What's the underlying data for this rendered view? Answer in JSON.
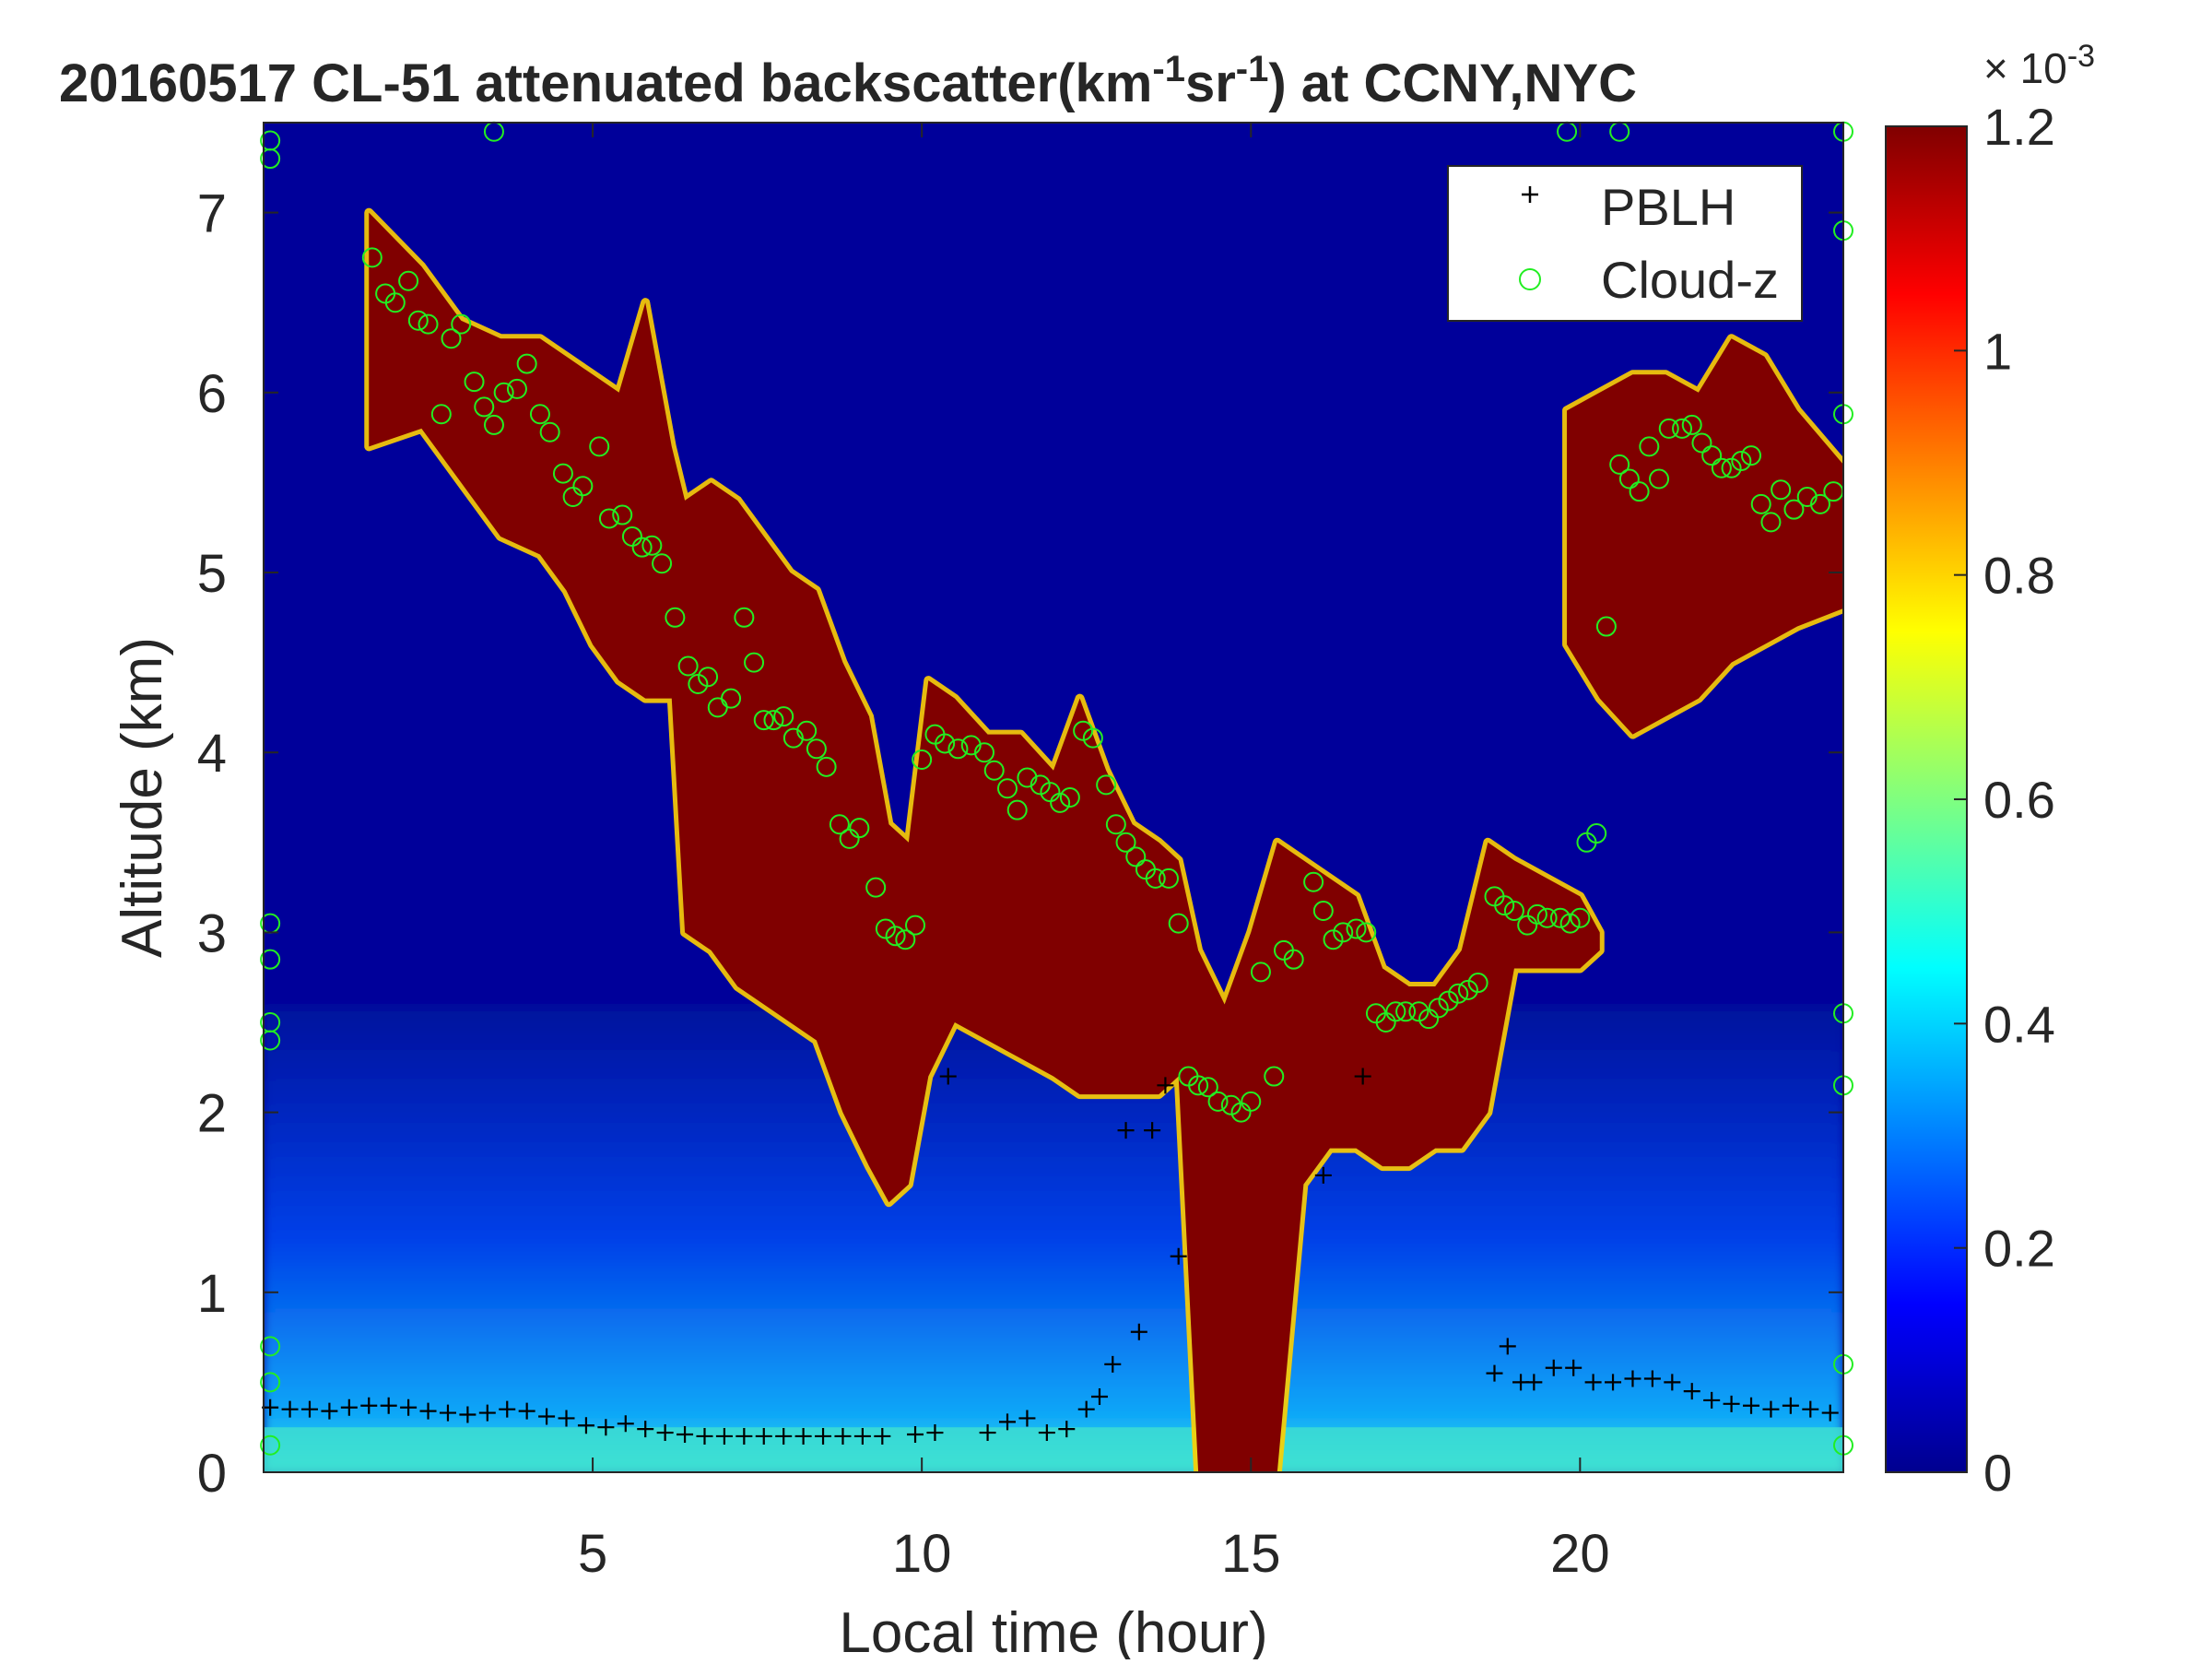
{
  "chart_data": {
    "type": "heatmap",
    "title_prefix": "20160517  CL-51 attenuated backscatter(km",
    "title_exp1": "-1",
    "title_mid": "sr",
    "title_exp2": "-1",
    "title_suffix": ") at CCNY,NYC",
    "xlabel": "Local time (hour)",
    "ylabel": "Altitude (km)",
    "xlim": [
      0,
      24
    ],
    "ylim": [
      0,
      7.5
    ],
    "xticks": [
      5,
      10,
      15,
      20
    ],
    "yticks": [
      0,
      1,
      2,
      3,
      4,
      5,
      6,
      7
    ],
    "colorbar": {
      "colormap": "jet",
      "clim": [
        0,
        0.0012
      ],
      "ticks": [
        0,
        0.2,
        0.4,
        0.6,
        0.8,
        1,
        1.2
      ],
      "multiplier_base": "× 10",
      "multiplier_exp": "-3"
    },
    "legend": {
      "position": "top-right",
      "pblh_label": "PBLH",
      "cloud_label": "Cloud-z"
    },
    "cloud_layer": [
      {
        "t": 1.6,
        "base": 5.7,
        "top": 7.0
      },
      {
        "t": 2.4,
        "base": 5.8,
        "top": 6.7
      },
      {
        "t": 3.0,
        "base": 5.5,
        "top": 6.4
      },
      {
        "t": 3.6,
        "base": 5.2,
        "top": 6.3
      },
      {
        "t": 4.2,
        "base": 5.1,
        "top": 6.3
      },
      {
        "t": 4.6,
        "base": 4.9,
        "top": 6.2
      },
      {
        "t": 5.0,
        "base": 4.6,
        "top": 6.1
      },
      {
        "t": 5.4,
        "base": 4.4,
        "top": 6.0
      },
      {
        "t": 5.8,
        "base": 4.3,
        "top": 6.5
      },
      {
        "t": 6.2,
        "base": 4.3,
        "top": 5.7
      },
      {
        "t": 6.4,
        "base": 3.0,
        "top": 5.4
      },
      {
        "t": 6.8,
        "base": 2.9,
        "top": 5.5
      },
      {
        "t": 7.2,
        "base": 2.7,
        "top": 5.4
      },
      {
        "t": 7.6,
        "base": 2.6,
        "top": 5.2
      },
      {
        "t": 8.0,
        "base": 2.5,
        "top": 5.0
      },
      {
        "t": 8.4,
        "base": 2.4,
        "top": 4.9
      },
      {
        "t": 8.8,
        "base": 2.0,
        "top": 4.5
      },
      {
        "t": 9.2,
        "base": 1.7,
        "top": 4.2
      },
      {
        "t": 9.5,
        "base": 1.5,
        "top": 3.6
      },
      {
        "t": 9.8,
        "base": 1.6,
        "top": 3.5
      },
      {
        "t": 10.1,
        "base": 2.2,
        "top": 4.4
      },
      {
        "t": 10.5,
        "base": 2.5,
        "top": 4.3
      },
      {
        "t": 11.0,
        "base": 2.4,
        "top": 4.1
      },
      {
        "t": 11.5,
        "base": 2.3,
        "top": 4.1
      },
      {
        "t": 12.0,
        "base": 2.2,
        "top": 3.9
      },
      {
        "t": 12.4,
        "base": 2.1,
        "top": 4.3
      },
      {
        "t": 12.8,
        "base": 2.1,
        "top": 3.9
      },
      {
        "t": 13.2,
        "base": 2.1,
        "top": 3.6
      },
      {
        "t": 13.6,
        "base": 2.1,
        "top": 3.5
      },
      {
        "t": 13.9,
        "base": 2.2,
        "top": 3.4
      },
      {
        "t": 14.2,
        "base": 0.0,
        "top": 2.9
      },
      {
        "t": 14.6,
        "base": 0.0,
        "top": 2.6
      },
      {
        "t": 15.0,
        "base": 0.0,
        "top": 3.0
      },
      {
        "t": 15.4,
        "base": 0.0,
        "top": 3.5
      },
      {
        "t": 15.8,
        "base": 1.6,
        "top": 3.4
      },
      {
        "t": 16.2,
        "base": 1.8,
        "top": 3.3
      },
      {
        "t": 16.6,
        "base": 1.8,
        "top": 3.2
      },
      {
        "t": 17.0,
        "base": 1.7,
        "top": 2.8
      },
      {
        "t": 17.4,
        "base": 1.7,
        "top": 2.7
      },
      {
        "t": 17.8,
        "base": 1.8,
        "top": 2.7
      },
      {
        "t": 18.2,
        "base": 1.8,
        "top": 2.9
      },
      {
        "t": 18.6,
        "base": 2.0,
        "top": 3.5
      },
      {
        "t": 19.0,
        "base": 2.8,
        "top": 3.4
      },
      {
        "t": 19.5,
        "base": 2.8,
        "top": 3.3
      },
      {
        "t": 20.0,
        "base": 2.8,
        "top": 3.2
      },
      {
        "t": 20.3,
        "base": 2.9,
        "top": 3.0
      }
    ],
    "upper_cloud": [
      {
        "t": 19.8,
        "base": 4.6,
        "top": 5.9
      },
      {
        "t": 20.3,
        "base": 4.3,
        "top": 6.0
      },
      {
        "t": 20.8,
        "base": 4.1,
        "top": 6.1
      },
      {
        "t": 21.3,
        "base": 4.2,
        "top": 6.1
      },
      {
        "t": 21.8,
        "base": 4.3,
        "top": 6.0
      },
      {
        "t": 22.3,
        "base": 4.5,
        "top": 6.3
      },
      {
        "t": 22.8,
        "base": 4.6,
        "top": 6.2
      },
      {
        "t": 23.3,
        "base": 4.7,
        "top": 5.9
      },
      {
        "t": 24.0,
        "base": 4.8,
        "top": 5.6
      }
    ],
    "pblh": [
      {
        "t": 0.1,
        "z": 0.36
      },
      {
        "t": 0.4,
        "z": 0.35
      },
      {
        "t": 0.7,
        "z": 0.35
      },
      {
        "t": 1.0,
        "z": 0.34
      },
      {
        "t": 1.3,
        "z": 0.36
      },
      {
        "t": 1.6,
        "z": 0.37
      },
      {
        "t": 1.9,
        "z": 0.37
      },
      {
        "t": 2.2,
        "z": 0.36
      },
      {
        "t": 2.5,
        "z": 0.34
      },
      {
        "t": 2.8,
        "z": 0.33
      },
      {
        "t": 3.1,
        "z": 0.32
      },
      {
        "t": 3.4,
        "z": 0.33
      },
      {
        "t": 3.7,
        "z": 0.35
      },
      {
        "t": 4.0,
        "z": 0.34
      },
      {
        "t": 4.3,
        "z": 0.31
      },
      {
        "t": 4.6,
        "z": 0.3
      },
      {
        "t": 4.9,
        "z": 0.26
      },
      {
        "t": 5.2,
        "z": 0.25
      },
      {
        "t": 5.5,
        "z": 0.27
      },
      {
        "t": 5.8,
        "z": 0.24
      },
      {
        "t": 6.1,
        "z": 0.22
      },
      {
        "t": 6.4,
        "z": 0.21
      },
      {
        "t": 6.7,
        "z": 0.2
      },
      {
        "t": 7.0,
        "z": 0.2
      },
      {
        "t": 7.3,
        "z": 0.2
      },
      {
        "t": 7.6,
        "z": 0.2
      },
      {
        "t": 7.9,
        "z": 0.2
      },
      {
        "t": 8.2,
        "z": 0.2
      },
      {
        "t": 8.5,
        "z": 0.2
      },
      {
        "t": 8.8,
        "z": 0.2
      },
      {
        "t": 9.1,
        "z": 0.2
      },
      {
        "t": 9.4,
        "z": 0.2
      },
      {
        "t": 9.9,
        "z": 0.21
      },
      {
        "t": 10.2,
        "z": 0.22
      },
      {
        "t": 10.4,
        "z": 2.2
      },
      {
        "t": 11.0,
        "z": 0.22
      },
      {
        "t": 11.3,
        "z": 0.28
      },
      {
        "t": 11.6,
        "z": 0.3
      },
      {
        "t": 11.9,
        "z": 0.22
      },
      {
        "t": 12.2,
        "z": 0.24
      },
      {
        "t": 12.5,
        "z": 0.35
      },
      {
        "t": 12.7,
        "z": 0.42
      },
      {
        "t": 12.9,
        "z": 0.6
      },
      {
        "t": 13.1,
        "z": 1.9
      },
      {
        "t": 13.3,
        "z": 0.78
      },
      {
        "t": 13.5,
        "z": 1.9
      },
      {
        "t": 13.7,
        "z": 2.15
      },
      {
        "t": 13.9,
        "z": 1.2
      },
      {
        "t": 16.1,
        "z": 1.65
      },
      {
        "t": 16.7,
        "z": 2.2
      },
      {
        "t": 18.7,
        "z": 0.55
      },
      {
        "t": 18.9,
        "z": 0.7
      },
      {
        "t": 19.1,
        "z": 0.5
      },
      {
        "t": 19.3,
        "z": 0.5
      },
      {
        "t": 19.6,
        "z": 0.58
      },
      {
        "t": 19.9,
        "z": 0.58
      },
      {
        "t": 20.2,
        "z": 0.5
      },
      {
        "t": 20.5,
        "z": 0.5
      },
      {
        "t": 20.8,
        "z": 0.52
      },
      {
        "t": 21.1,
        "z": 0.52
      },
      {
        "t": 21.4,
        "z": 0.5
      },
      {
        "t": 21.7,
        "z": 0.45
      },
      {
        "t": 22.0,
        "z": 0.4
      },
      {
        "t": 22.3,
        "z": 0.38
      },
      {
        "t": 22.6,
        "z": 0.37
      },
      {
        "t": 22.9,
        "z": 0.35
      },
      {
        "t": 23.2,
        "z": 0.37
      },
      {
        "t": 23.5,
        "z": 0.35
      },
      {
        "t": 23.8,
        "z": 0.33
      }
    ],
    "cloud_z": [
      {
        "t": 0.1,
        "z": 7.4
      },
      {
        "t": 0.1,
        "z": 7.3
      },
      {
        "t": 0.1,
        "z": 3.05
      },
      {
        "t": 0.1,
        "z": 2.85
      },
      {
        "t": 0.1,
        "z": 2.5
      },
      {
        "t": 0.1,
        "z": 2.4
      },
      {
        "t": 0.1,
        "z": 0.7
      },
      {
        "t": 0.1,
        "z": 0.5
      },
      {
        "t": 0.1,
        "z": 0.15
      },
      {
        "t": 1.65,
        "z": 6.75
      },
      {
        "t": 1.85,
        "z": 6.55
      },
      {
        "t": 2.0,
        "z": 6.5
      },
      {
        "t": 2.2,
        "z": 6.62
      },
      {
        "t": 2.35,
        "z": 6.4
      },
      {
        "t": 2.5,
        "z": 6.38
      },
      {
        "t": 2.7,
        "z": 5.88
      },
      {
        "t": 2.85,
        "z": 6.3
      },
      {
        "t": 3.0,
        "z": 6.38
      },
      {
        "t": 3.2,
        "z": 6.06
      },
      {
        "t": 3.35,
        "z": 5.92
      },
      {
        "t": 3.5,
        "z": 5.82
      },
      {
        "t": 3.65,
        "z": 6.0
      },
      {
        "t": 3.85,
        "z": 6.02
      },
      {
        "t": 4.0,
        "z": 6.16
      },
      {
        "t": 4.2,
        "z": 5.88
      },
      {
        "t": 4.35,
        "z": 5.78
      },
      {
        "t": 4.55,
        "z": 5.55
      },
      {
        "t": 4.7,
        "z": 5.42
      },
      {
        "t": 4.85,
        "z": 5.48
      },
      {
        "t": 5.1,
        "z": 5.7
      },
      {
        "t": 5.25,
        "z": 5.3
      },
      {
        "t": 5.45,
        "z": 5.32
      },
      {
        "t": 5.6,
        "z": 5.2
      },
      {
        "t": 5.75,
        "z": 5.14
      },
      {
        "t": 5.9,
        "z": 5.15
      },
      {
        "t": 6.05,
        "z": 5.05
      },
      {
        "t": 6.25,
        "z": 4.75
      },
      {
        "t": 6.45,
        "z": 4.48
      },
      {
        "t": 6.6,
        "z": 4.38
      },
      {
        "t": 6.75,
        "z": 4.42
      },
      {
        "t": 6.9,
        "z": 4.25
      },
      {
        "t": 7.1,
        "z": 4.3
      },
      {
        "t": 7.3,
        "z": 4.75
      },
      {
        "t": 7.45,
        "z": 4.5
      },
      {
        "t": 7.6,
        "z": 4.18
      },
      {
        "t": 7.75,
        "z": 4.18
      },
      {
        "t": 7.9,
        "z": 4.2
      },
      {
        "t": 8.05,
        "z": 4.08
      },
      {
        "t": 8.25,
        "z": 4.12
      },
      {
        "t": 8.4,
        "z": 4.02
      },
      {
        "t": 8.55,
        "z": 3.92
      },
      {
        "t": 8.75,
        "z": 3.6
      },
      {
        "t": 8.9,
        "z": 3.52
      },
      {
        "t": 9.05,
        "z": 3.58
      },
      {
        "t": 9.3,
        "z": 3.25
      },
      {
        "t": 9.45,
        "z": 3.02
      },
      {
        "t": 9.6,
        "z": 2.98
      },
      {
        "t": 9.75,
        "z": 2.96
      },
      {
        "t": 9.9,
        "z": 3.04
      },
      {
        "t": 10.0,
        "z": 3.96
      },
      {
        "t": 10.2,
        "z": 4.1
      },
      {
        "t": 10.35,
        "z": 4.05
      },
      {
        "t": 10.55,
        "z": 4.02
      },
      {
        "t": 10.75,
        "z": 4.04
      },
      {
        "t": 10.95,
        "z": 4.0
      },
      {
        "t": 11.1,
        "z": 3.9
      },
      {
        "t": 11.3,
        "z": 3.8
      },
      {
        "t": 11.45,
        "z": 3.68
      },
      {
        "t": 11.6,
        "z": 3.86
      },
      {
        "t": 11.8,
        "z": 3.82
      },
      {
        "t": 11.95,
        "z": 3.78
      },
      {
        "t": 12.1,
        "z": 3.72
      },
      {
        "t": 12.25,
        "z": 3.75
      },
      {
        "t": 12.45,
        "z": 4.12
      },
      {
        "t": 12.6,
        "z": 4.08
      },
      {
        "t": 12.8,
        "z": 3.82
      },
      {
        "t": 12.95,
        "z": 3.6
      },
      {
        "t": 13.1,
        "z": 3.5
      },
      {
        "t": 13.25,
        "z": 3.42
      },
      {
        "t": 13.4,
        "z": 3.35
      },
      {
        "t": 13.55,
        "z": 3.3
      },
      {
        "t": 13.75,
        "z": 3.3
      },
      {
        "t": 13.9,
        "z": 3.05
      },
      {
        "t": 14.05,
        "z": 2.2
      },
      {
        "t": 14.2,
        "z": 2.15
      },
      {
        "t": 14.35,
        "z": 2.14
      },
      {
        "t": 14.5,
        "z": 2.06
      },
      {
        "t": 14.7,
        "z": 2.04
      },
      {
        "t": 14.85,
        "z": 2.0
      },
      {
        "t": 15.0,
        "z": 2.06
      },
      {
        "t": 15.15,
        "z": 2.78
      },
      {
        "t": 15.35,
        "z": 2.2
      },
      {
        "t": 15.5,
        "z": 2.9
      },
      {
        "t": 15.65,
        "z": 2.85
      },
      {
        "t": 15.95,
        "z": 3.28
      },
      {
        "t": 16.1,
        "z": 3.12
      },
      {
        "t": 16.25,
        "z": 2.96
      },
      {
        "t": 16.4,
        "z": 3.0
      },
      {
        "t": 16.6,
        "z": 3.02
      },
      {
        "t": 16.75,
        "z": 3.0
      },
      {
        "t": 16.9,
        "z": 2.55
      },
      {
        "t": 17.05,
        "z": 2.5
      },
      {
        "t": 17.2,
        "z": 2.56
      },
      {
        "t": 17.35,
        "z": 2.56
      },
      {
        "t": 17.55,
        "z": 2.56
      },
      {
        "t": 17.7,
        "z": 2.52
      },
      {
        "t": 17.85,
        "z": 2.58
      },
      {
        "t": 18.0,
        "z": 2.62
      },
      {
        "t": 18.15,
        "z": 2.66
      },
      {
        "t": 18.3,
        "z": 2.68
      },
      {
        "t": 18.45,
        "z": 2.72
      },
      {
        "t": 18.7,
        "z": 3.2
      },
      {
        "t": 18.85,
        "z": 3.15
      },
      {
        "t": 19.0,
        "z": 3.12
      },
      {
        "t": 19.2,
        "z": 3.04
      },
      {
        "t": 19.35,
        "z": 3.1
      },
      {
        "t": 19.5,
        "z": 3.08
      },
      {
        "t": 19.7,
        "z": 3.08
      },
      {
        "t": 19.85,
        "z": 3.05
      },
      {
        "t": 20.0,
        "z": 3.08
      },
      {
        "t": 20.1,
        "z": 3.5
      },
      {
        "t": 20.25,
        "z": 3.55
      },
      {
        "t": 20.4,
        "z": 4.7
      },
      {
        "t": 20.6,
        "z": 5.6
      },
      {
        "t": 20.75,
        "z": 5.52
      },
      {
        "t": 20.9,
        "z": 5.45
      },
      {
        "t": 21.05,
        "z": 5.7
      },
      {
        "t": 21.2,
        "z": 5.52
      },
      {
        "t": 21.35,
        "z": 5.8
      },
      {
        "t": 21.55,
        "z": 5.8
      },
      {
        "t": 21.7,
        "z": 5.82
      },
      {
        "t": 21.85,
        "z": 5.72
      },
      {
        "t": 22.0,
        "z": 5.65
      },
      {
        "t": 22.15,
        "z": 5.58
      },
      {
        "t": 22.3,
        "z": 5.58
      },
      {
        "t": 22.45,
        "z": 5.62
      },
      {
        "t": 22.6,
        "z": 5.65
      },
      {
        "t": 22.75,
        "z": 5.38
      },
      {
        "t": 22.9,
        "z": 5.28
      },
      {
        "t": 23.05,
        "z": 5.46
      },
      {
        "t": 23.25,
        "z": 5.35
      },
      {
        "t": 23.45,
        "z": 5.42
      },
      {
        "t": 23.65,
        "z": 5.38
      },
      {
        "t": 23.85,
        "z": 5.45
      },
      {
        "t": 24.0,
        "z": 6.9
      },
      {
        "t": 24.0,
        "z": 5.88
      },
      {
        "t": 24.0,
        "z": 2.55
      },
      {
        "t": 24.0,
        "z": 2.15
      },
      {
        "t": 24.0,
        "z": 0.6
      },
      {
        "t": 24.0,
        "z": 0.15
      },
      {
        "t": 3.5,
        "z": 7.45
      },
      {
        "t": 19.8,
        "z": 7.45
      },
      {
        "t": 20.6,
        "z": 7.45
      },
      {
        "t": 24.0,
        "z": 7.45
      }
    ]
  }
}
